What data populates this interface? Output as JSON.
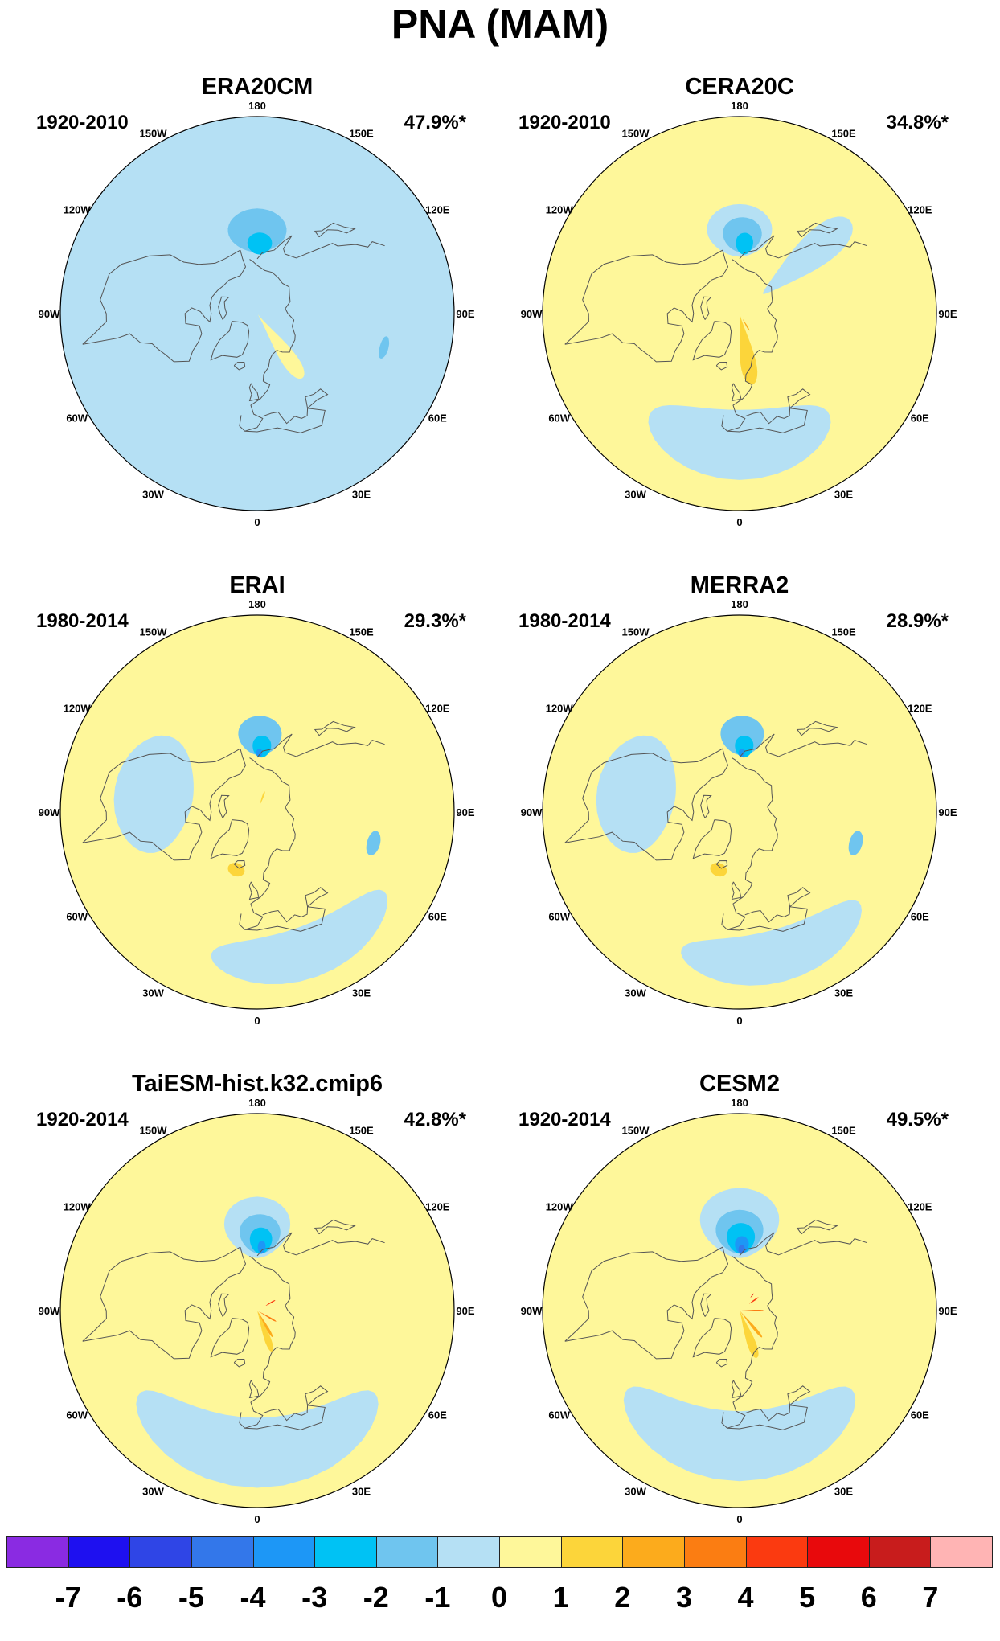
{
  "figure": {
    "title": "PNA (MAM)"
  },
  "longitude_labels": [
    "180",
    "150E",
    "120E",
    "90E",
    "60E",
    "30E",
    "0",
    "30W",
    "60W",
    "90W",
    "120W",
    "150W"
  ],
  "panels": [
    {
      "title": "ERA20CM",
      "period": "1920-2010",
      "variance": "47.9%*",
      "base_level": -1,
      "features": [
        {
          "lon": 180,
          "lat": 52,
          "rx": 20,
          "ry": 10,
          "level": -2
        },
        {
          "lon": 178,
          "lat": 58,
          "rx": 10,
          "ry": 5,
          "level": -3
        },
        {
          "lon": 35,
          "lat": 72,
          "rx": 9,
          "ry": 18,
          "level": 0
        },
        {
          "lon": 75,
          "lat": 30,
          "rx": 5,
          "ry": 2,
          "level": -2
        }
      ]
    },
    {
      "title": "CERA20C",
      "period": "1920-2010",
      "variance": "34.8%*",
      "base_level": 0,
      "features": [
        {
          "lon": 0,
          "lat": 30,
          "rx": 42,
          "ry": 16,
          "level": -1
        },
        {
          "lon": 130,
          "lat": 50,
          "rx": 10,
          "ry": 26,
          "level": -1
        },
        {
          "lon": 180,
          "lat": 52,
          "rx": 22,
          "ry": 12,
          "level": -1
        },
        {
          "lon": 178,
          "lat": 54,
          "rx": 14,
          "ry": 8,
          "level": -2
        },
        {
          "lon": 176,
          "lat": 58,
          "rx": 7,
          "ry": 5,
          "level": -3
        },
        {
          "lon": 10,
          "lat": 75,
          "rx": 10,
          "ry": 18,
          "level": 1
        },
        {
          "lon": 30,
          "lat": 84,
          "rx": 2.5,
          "ry": 3,
          "level": 2
        }
      ]
    },
    {
      "title": "ERAI",
      "period": "1980-2014",
      "variance": "29.3%*",
      "base_level": 0,
      "features": [
        {
          "lon": 260,
          "lat": 42,
          "rx": 32,
          "ry": 18,
          "level": -1
        },
        {
          "lon": 178,
          "lat": 55,
          "rx": 16,
          "ry": 9,
          "level": -2
        },
        {
          "lon": 176,
          "lat": 60,
          "rx": 8,
          "ry": 5,
          "level": -3
        },
        {
          "lon": 178,
          "lat": 63,
          "rx": 3,
          "ry": 2,
          "level": -4
        },
        {
          "lon": 20,
          "lat": 22,
          "rx": 38,
          "ry": 12,
          "level": -1
        },
        {
          "lon": 75,
          "lat": 35,
          "rx": 6,
          "ry": 3,
          "level": -2
        },
        {
          "lon": 340,
          "lat": 62,
          "rx": 8,
          "ry": 3,
          "level": 1
        },
        {
          "lon": 160,
          "lat": 83,
          "rx": 3,
          "ry": 3,
          "level": 1
        }
      ]
    },
    {
      "title": "MERRA2",
      "period": "1980-2014",
      "variance": "28.9%*",
      "base_level": 0,
      "features": [
        {
          "lon": 260,
          "lat": 42,
          "rx": 32,
          "ry": 18,
          "level": -1
        },
        {
          "lon": 178,
          "lat": 55,
          "rx": 16,
          "ry": 9,
          "level": -2
        },
        {
          "lon": 176,
          "lat": 60,
          "rx": 8,
          "ry": 5,
          "level": -3
        },
        {
          "lon": 178,
          "lat": 63,
          "rx": 3,
          "ry": 2,
          "level": -4
        },
        {
          "lon": 15,
          "lat": 22,
          "rx": 38,
          "ry": 12,
          "level": -1
        },
        {
          "lon": 75,
          "lat": 35,
          "rx": 6,
          "ry": 3,
          "level": -2
        },
        {
          "lon": 340,
          "lat": 62,
          "rx": 8,
          "ry": 3,
          "level": 1
        }
      ]
    },
    {
      "title": "TaiESM-hist.k32.cmip6",
      "period": "1920-2014",
      "variance": "42.8%*",
      "base_level": 0,
      "features": [
        {
          "lon": 0,
          "lat": 25,
          "rx": 55,
          "ry": 16,
          "level": -1
        },
        {
          "lon": 180,
          "lat": 52,
          "rx": 22,
          "ry": 14,
          "level": -1
        },
        {
          "lon": 178,
          "lat": 55,
          "rx": 15,
          "ry": 9,
          "level": -2
        },
        {
          "lon": 177,
          "lat": 58,
          "rx": 9,
          "ry": 6,
          "level": -3
        },
        {
          "lon": 176,
          "lat": 61,
          "rx": 3.5,
          "ry": 3,
          "level": -4
        },
        {
          "lon": 20,
          "lat": 82,
          "rx": 7,
          "ry": 12,
          "level": 1
        },
        {
          "lon": 30,
          "lat": 84,
          "rx": 4,
          "ry": 8,
          "level": 2
        },
        {
          "lon": 60,
          "lat": 85,
          "rx": 3,
          "ry": 5,
          "level": 3
        },
        {
          "lon": 120,
          "lat": 83,
          "rx": 2,
          "ry": 2.5,
          "level": 4
        }
      ]
    },
    {
      "title": "CESM2",
      "period": "1920-2014",
      "variance": "49.5%*",
      "base_level": 0,
      "features": [
        {
          "lon": 0,
          "lat": 28,
          "rx": 55,
          "ry": 16,
          "level": -1
        },
        {
          "lon": 180,
          "lat": 50,
          "rx": 25,
          "ry": 16,
          "level": -1
        },
        {
          "lon": 180,
          "lat": 54,
          "rx": 17,
          "ry": 10,
          "level": -2
        },
        {
          "lon": 179,
          "lat": 57,
          "rx": 11,
          "ry": 7,
          "level": -3
        },
        {
          "lon": 178,
          "lat": 60,
          "rx": 6,
          "ry": 4,
          "level": -4
        },
        {
          "lon": 178,
          "lat": 62,
          "rx": 3,
          "ry": 2,
          "level": -5
        },
        {
          "lon": 20,
          "lat": 80,
          "rx": 8,
          "ry": 13,
          "level": 1
        },
        {
          "lon": 40,
          "lat": 83,
          "rx": 4,
          "ry": 9,
          "level": 2
        },
        {
          "lon": 90,
          "lat": 84,
          "rx": 3,
          "ry": 5,
          "level": 3
        },
        {
          "lon": 125,
          "lat": 82,
          "rx": 2,
          "ry": 2.5,
          "level": 4
        },
        {
          "lon": 140,
          "lat": 81,
          "rx": 1,
          "ry": 1.2,
          "level": 5
        }
      ]
    }
  ],
  "colorbar": {
    "labels": [
      "-7",
      "-6",
      "-5",
      "-4",
      "-3",
      "-2",
      "-1",
      "0",
      "1",
      "2",
      "3",
      "4",
      "5",
      "6",
      "7"
    ],
    "colors": [
      "#8a2be2",
      "#1e10f0",
      "#2f45e6",
      "#3377ea",
      "#1d97f6",
      "#00c2f4",
      "#6fc5ef",
      "#b5e0f4",
      "#fef79a",
      "#fcd53a",
      "#fcab1c",
      "#fb7d12",
      "#fb3a10",
      "#e8090c",
      "#c81c1c",
      "#ffb4b4"
    ],
    "level_colors": {
      "-7": "#1e10f0",
      "-6": "#2f45e6",
      "-5": "#3377ea",
      "-4": "#1d97f6",
      "-3": "#00c2f4",
      "-2": "#6fc5ef",
      "-1": "#b5e0f4",
      "0": "#fef79a",
      "1": "#fcd53a",
      "2": "#fcab1c",
      "3": "#fb7d12",
      "4": "#fb3a10",
      "5": "#e8090c",
      "6": "#c81c1c"
    }
  }
}
